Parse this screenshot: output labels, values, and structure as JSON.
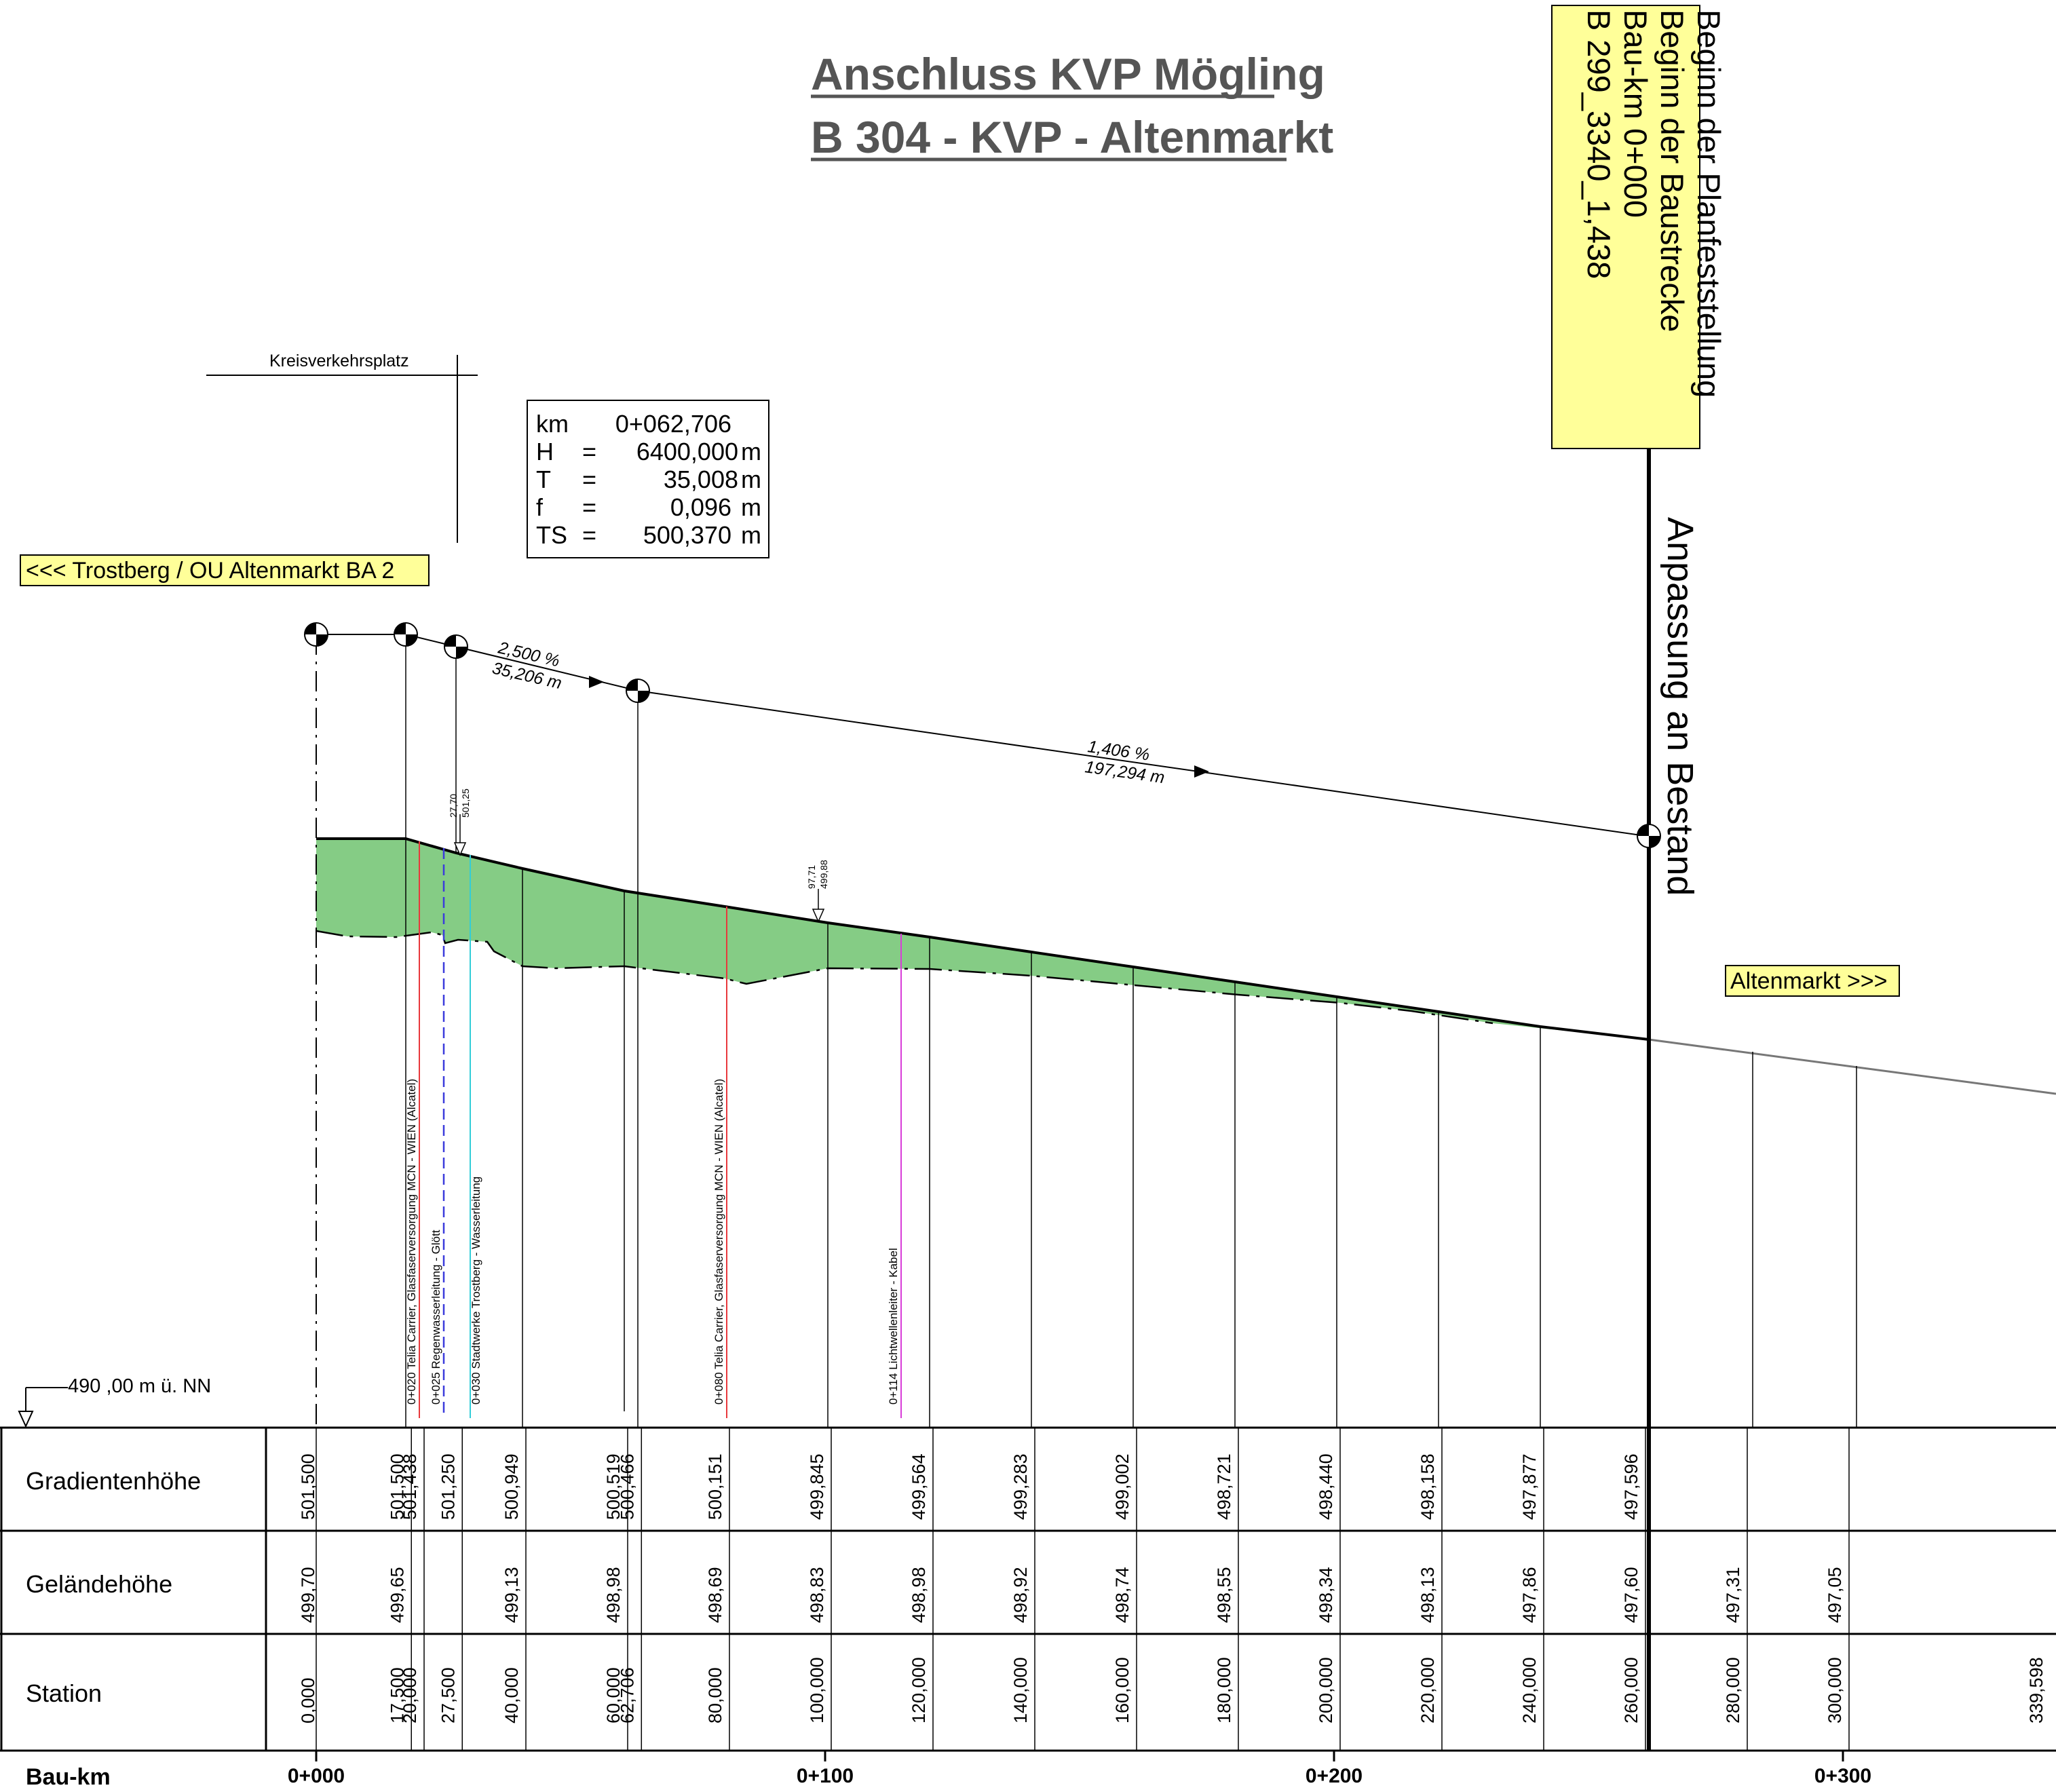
{
  "title": {
    "line1": "Anschluss KVP Mögling",
    "line2": "B 304 - KVP - Altenmarkt"
  },
  "begin_box": {
    "lines": [
      "Beginn der Planfeststellung",
      "Beginn der Baustrecke",
      "Bau-km 0+000",
      "B 299_3340_1,438"
    ]
  },
  "anpassung_label": "Anpassung an Bestand",
  "kreisverkehr_label": "Kreisverkehrsplatz",
  "curve_info": {
    "rows": [
      {
        "key": "km",
        "eq": "",
        "value": "0+062,706",
        "unit": ""
      },
      {
        "key": "H",
        "eq": "=",
        "value": "6400,000",
        "unit": "m"
      },
      {
        "key": "T",
        "eq": "=",
        "value": "35,008",
        "unit": "m"
      },
      {
        "key": "f",
        "eq": "=",
        "value": "0,096",
        "unit": "m"
      },
      {
        "key": "TS",
        "eq": "=",
        "value": "500,370",
        "unit": "m"
      }
    ]
  },
  "direction_left": "<<< Trostberg / OU Altenmarkt BA 2",
  "direction_right": "Altenmarkt >>>",
  "slopes": [
    {
      "percent": "2,500  %",
      "length": "35,206  m"
    },
    {
      "percent": "1,406  %",
      "length": "197,294  m"
    }
  ],
  "markers": [
    {
      "top": "27,70",
      "bottom": "501,25"
    },
    {
      "top": "97,71",
      "bottom": "499,88"
    }
  ],
  "datum": "490 ,00 m ü. NN",
  "utilities": [
    {
      "label": "0+020   Telia Carrier, Glasfaserversorgung MCN - WIEN (Alcatel)",
      "color": "#e8383c",
      "dashed": false
    },
    {
      "label": "0+025   Regenwasserleitung - Glött",
      "color": "#3b3bdc",
      "dashed": true
    },
    {
      "label": "0+030   Stadtwerke Trostberg - Wasserleitung",
      "color": "#33cdd8",
      "dashed": false
    },
    {
      "label": "0+080   Telia Carrier, Glasfaserversorgung MCN - WIEN (Alcatel)",
      "color": "#e8383c",
      "dashed": false
    },
    {
      "label": "0+114   Lichtwellenleiter - Kabel",
      "color": "#d83cd8",
      "dashed": false
    }
  ],
  "rows": {
    "gradient": "Gradientenhöhe",
    "terrain": "Geländehöhe",
    "station": "Station",
    "baukm": "Bau-km"
  },
  "colors": {
    "fill": "#85cc85",
    "label_box": "#ffff99"
  },
  "chart_data": {
    "type": "table",
    "gradient": [
      {
        "station": 0.0,
        "value": "501,500"
      },
      {
        "station": 17.5,
        "value": "501,500"
      },
      {
        "station": 20.0,
        "value": "501,438"
      },
      {
        "station": 27.5,
        "value": "501,250"
      },
      {
        "station": 40.0,
        "value": "500,949"
      },
      {
        "station": 60.0,
        "value": "500,519"
      },
      {
        "station": 62.706,
        "value": "500,466"
      },
      {
        "station": 80.0,
        "value": "500,151"
      },
      {
        "station": 100.0,
        "value": "499,845"
      },
      {
        "station": 120.0,
        "value": "499,564"
      },
      {
        "station": 140.0,
        "value": "499,283"
      },
      {
        "station": 160.0,
        "value": "499,002"
      },
      {
        "station": 180.0,
        "value": "498,721"
      },
      {
        "station": 200.0,
        "value": "498,440"
      },
      {
        "station": 220.0,
        "value": "498,158"
      },
      {
        "station": 240.0,
        "value": "497,877"
      },
      {
        "station": 260.0,
        "value": "497,596"
      }
    ],
    "terrain": [
      {
        "station": 0.0,
        "value": "499,70"
      },
      {
        "station": 17.5,
        "value": "499,65"
      },
      {
        "station": 40.0,
        "value": "499,13"
      },
      {
        "station": 60.0,
        "value": "498,98"
      },
      {
        "station": 80.0,
        "value": "498,69"
      },
      {
        "station": 100.0,
        "value": "498,83"
      },
      {
        "station": 120.0,
        "value": "498,98"
      },
      {
        "station": 140.0,
        "value": "498,92"
      },
      {
        "station": 160.0,
        "value": "498,74"
      },
      {
        "station": 180.0,
        "value": "498,55"
      },
      {
        "station": 200.0,
        "value": "498,34"
      },
      {
        "station": 220.0,
        "value": "498,13"
      },
      {
        "station": 240.0,
        "value": "497,86"
      },
      {
        "station": 260.0,
        "value": "497,60"
      },
      {
        "station": 280.0,
        "value": "497,31"
      },
      {
        "station": 300.0,
        "value": "497,05"
      }
    ],
    "stations": [
      {
        "station": 0.0,
        "label": "0,000"
      },
      {
        "station": 17.5,
        "label": "17,500"
      },
      {
        "station": 20.0,
        "label": "20,000"
      },
      {
        "station": 27.5,
        "label": "27,500"
      },
      {
        "station": 40.0,
        "label": "40,000"
      },
      {
        "station": 60.0,
        "label": "60,000"
      },
      {
        "station": 62.706,
        "label": "62,706"
      },
      {
        "station": 80.0,
        "label": "80,000"
      },
      {
        "station": 100.0,
        "label": "100,000"
      },
      {
        "station": 120.0,
        "label": "120,000"
      },
      {
        "station": 140.0,
        "label": "140,000"
      },
      {
        "station": 160.0,
        "label": "160,000"
      },
      {
        "station": 180.0,
        "label": "180,000"
      },
      {
        "station": 200.0,
        "label": "200,000"
      },
      {
        "station": 220.0,
        "label": "220,000"
      },
      {
        "station": 240.0,
        "label": "240,000"
      },
      {
        "station": 260.0,
        "label": "260,000"
      },
      {
        "station": 280.0,
        "label": "280,000"
      },
      {
        "station": 300.0,
        "label": "300,000"
      },
      {
        "station": 339.598,
        "label": "339,598"
      }
    ],
    "baukm": [
      {
        "station": 0,
        "label": "0+000"
      },
      {
        "station": 100,
        "label": "0+100"
      },
      {
        "station": 200,
        "label": "0+200"
      },
      {
        "station": 300,
        "label": "0+300"
      }
    ]
  }
}
